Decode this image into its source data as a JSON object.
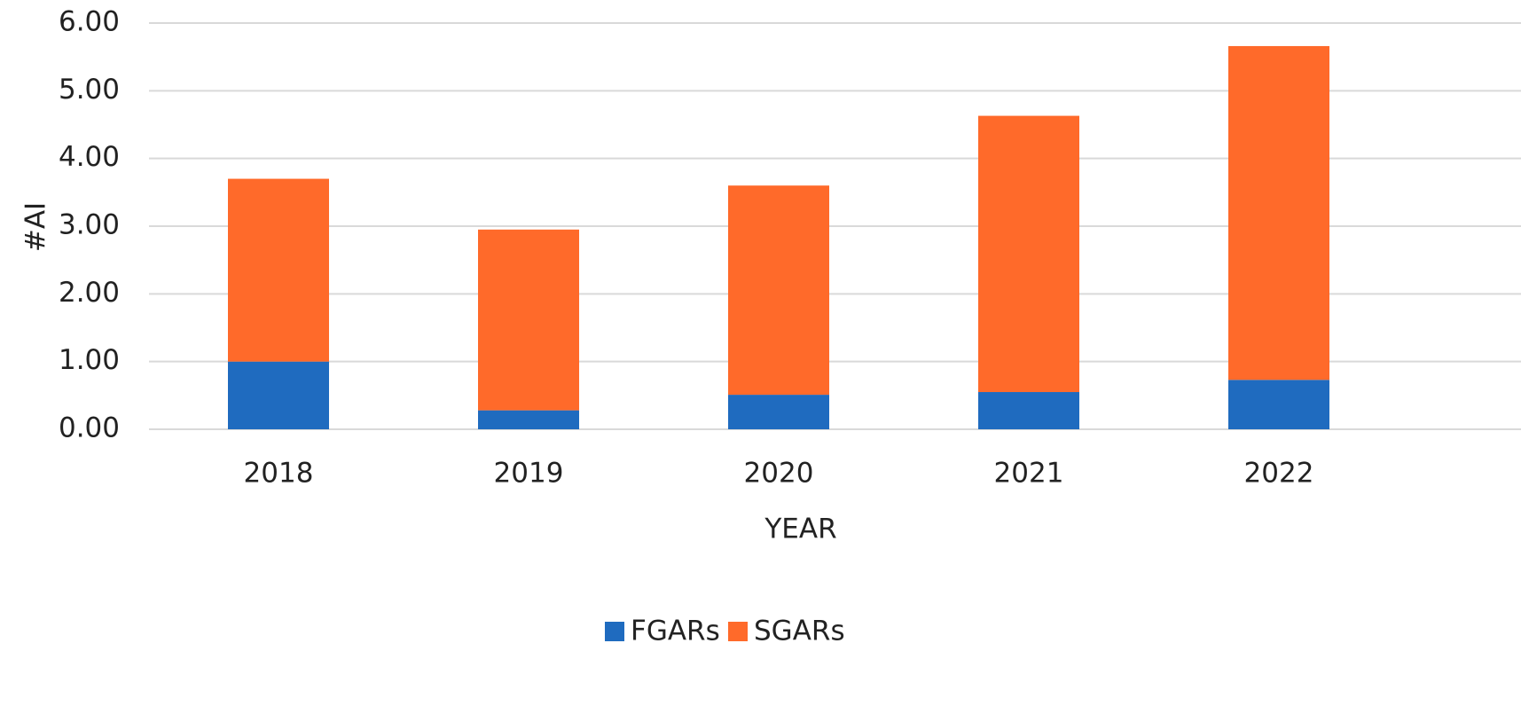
{
  "chart_data": {
    "type": "stacked_bar",
    "x_label": "YEAR",
    "y_label": "#AI",
    "categories": [
      "2018",
      "2019",
      "2020",
      "2021",
      "2022"
    ],
    "series": [
      {
        "name": "FGARs",
        "color": "#1f6bbf",
        "values": [
          1.0,
          0.28,
          0.51,
          0.55,
          0.73
        ]
      },
      {
        "name": "SGARs",
        "color": "#ff6a2a",
        "values": [
          2.7,
          2.67,
          3.09,
          4.08,
          4.93
        ]
      }
    ],
    "ylim": [
      0,
      6
    ],
    "yticks": [
      {
        "value": 0,
        "label": "0.00"
      },
      {
        "value": 1,
        "label": "1.00"
      },
      {
        "value": 2,
        "label": "2.00"
      },
      {
        "value": 3,
        "label": "3.00"
      },
      {
        "value": 4,
        "label": "4.00"
      },
      {
        "value": 5,
        "label": "5.00"
      },
      {
        "value": 6,
        "label": "6.00"
      }
    ],
    "grid": true,
    "legend": "bottom"
  }
}
